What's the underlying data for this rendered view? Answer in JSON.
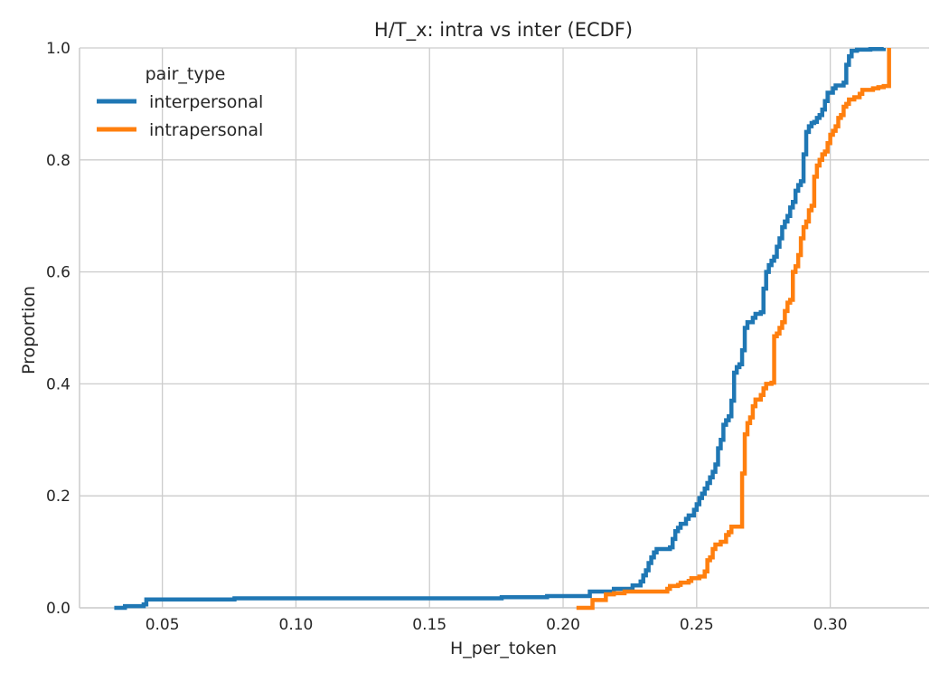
{
  "chart_data": {
    "type": "line",
    "title": "H/T_x: intra vs inter (ECDF)",
    "xlabel": "H_per_token",
    "ylabel": "Proportion",
    "xlim": [
      0.019,
      0.337
    ],
    "ylim": [
      0.0,
      1.0
    ],
    "x_ticks": [
      "0.05",
      "0.10",
      "0.15",
      "0.20",
      "0.25",
      "0.30"
    ],
    "y_ticks": [
      "0.0",
      "0.2",
      "0.4",
      "0.6",
      "0.8",
      "1.0"
    ],
    "grid": true,
    "legend": {
      "title": "pair_type",
      "placement": "top-left"
    },
    "series": [
      {
        "name": "interpersonal",
        "color": "#1f77b4",
        "step": true,
        "points": [
          [
            0.032,
            0.0
          ],
          [
            0.036,
            0.003
          ],
          [
            0.043,
            0.006
          ],
          [
            0.044,
            0.015
          ],
          [
            0.076,
            0.015
          ],
          [
            0.077,
            0.017
          ],
          [
            0.176,
            0.017
          ],
          [
            0.177,
            0.019
          ],
          [
            0.193,
            0.019
          ],
          [
            0.194,
            0.021
          ],
          [
            0.209,
            0.021
          ],
          [
            0.21,
            0.029
          ],
          [
            0.216,
            0.029
          ],
          [
            0.219,
            0.034
          ],
          [
            0.226,
            0.04
          ],
          [
            0.229,
            0.047
          ],
          [
            0.23,
            0.058
          ],
          [
            0.231,
            0.067
          ],
          [
            0.232,
            0.08
          ],
          [
            0.233,
            0.09
          ],
          [
            0.234,
            0.099
          ],
          [
            0.235,
            0.105
          ],
          [
            0.24,
            0.108
          ],
          [
            0.241,
            0.123
          ],
          [
            0.242,
            0.137
          ],
          [
            0.243,
            0.143
          ],
          [
            0.244,
            0.15
          ],
          [
            0.246,
            0.159
          ],
          [
            0.247,
            0.165
          ],
          [
            0.249,
            0.175
          ],
          [
            0.25,
            0.185
          ],
          [
            0.251,
            0.196
          ],
          [
            0.252,
            0.204
          ],
          [
            0.253,
            0.213
          ],
          [
            0.254,
            0.223
          ],
          [
            0.255,
            0.233
          ],
          [
            0.256,
            0.243
          ],
          [
            0.257,
            0.256
          ],
          [
            0.258,
            0.285
          ],
          [
            0.259,
            0.3
          ],
          [
            0.26,
            0.327
          ],
          [
            0.261,
            0.335
          ],
          [
            0.262,
            0.342
          ],
          [
            0.263,
            0.37
          ],
          [
            0.264,
            0.42
          ],
          [
            0.265,
            0.43
          ],
          [
            0.266,
            0.435
          ],
          [
            0.267,
            0.46
          ],
          [
            0.268,
            0.5
          ],
          [
            0.269,
            0.51
          ],
          [
            0.271,
            0.518
          ],
          [
            0.272,
            0.525
          ],
          [
            0.274,
            0.528
          ],
          [
            0.275,
            0.57
          ],
          [
            0.276,
            0.6
          ],
          [
            0.277,
            0.612
          ],
          [
            0.278,
            0.62
          ],
          [
            0.279,
            0.627
          ],
          [
            0.28,
            0.645
          ],
          [
            0.281,
            0.66
          ],
          [
            0.282,
            0.68
          ],
          [
            0.283,
            0.69
          ],
          [
            0.284,
            0.7
          ],
          [
            0.285,
            0.715
          ],
          [
            0.286,
            0.725
          ],
          [
            0.287,
            0.745
          ],
          [
            0.288,
            0.755
          ],
          [
            0.289,
            0.762
          ],
          [
            0.29,
            0.81
          ],
          [
            0.291,
            0.85
          ],
          [
            0.292,
            0.86
          ],
          [
            0.293,
            0.866
          ],
          [
            0.294,
            0.868
          ],
          [
            0.295,
            0.875
          ],
          [
            0.296,
            0.88
          ],
          [
            0.297,
            0.89
          ],
          [
            0.298,
            0.905
          ],
          [
            0.299,
            0.92
          ],
          [
            0.301,
            0.928
          ],
          [
            0.302,
            0.933
          ],
          [
            0.305,
            0.938
          ],
          [
            0.306,
            0.97
          ],
          [
            0.307,
            0.985
          ],
          [
            0.308,
            0.995
          ],
          [
            0.31,
            0.997
          ],
          [
            0.315,
            0.998
          ],
          [
            0.32,
            1.0
          ]
        ]
      },
      {
        "name": "intrapersonal",
        "color": "#ff7f0e",
        "step": true,
        "points": [
          [
            0.205,
            0.0
          ],
          [
            0.211,
            0.014
          ],
          [
            0.215,
            0.014
          ],
          [
            0.216,
            0.024
          ],
          [
            0.219,
            0.026
          ],
          [
            0.223,
            0.029
          ],
          [
            0.238,
            0.029
          ],
          [
            0.239,
            0.034
          ],
          [
            0.24,
            0.039
          ],
          [
            0.243,
            0.041
          ],
          [
            0.244,
            0.045
          ],
          [
            0.247,
            0.048
          ],
          [
            0.248,
            0.053
          ],
          [
            0.251,
            0.056
          ],
          [
            0.253,
            0.065
          ],
          [
            0.254,
            0.085
          ],
          [
            0.255,
            0.09
          ],
          [
            0.256,
            0.105
          ],
          [
            0.257,
            0.113
          ],
          [
            0.259,
            0.118
          ],
          [
            0.261,
            0.13
          ],
          [
            0.262,
            0.135
          ],
          [
            0.263,
            0.145
          ],
          [
            0.266,
            0.145
          ],
          [
            0.267,
            0.24
          ],
          [
            0.268,
            0.31
          ],
          [
            0.269,
            0.33
          ],
          [
            0.27,
            0.34
          ],
          [
            0.271,
            0.36
          ],
          [
            0.272,
            0.372
          ],
          [
            0.274,
            0.38
          ],
          [
            0.275,
            0.392
          ],
          [
            0.276,
            0.4
          ],
          [
            0.278,
            0.402
          ],
          [
            0.279,
            0.485
          ],
          [
            0.28,
            0.49
          ],
          [
            0.281,
            0.5
          ],
          [
            0.282,
            0.51
          ],
          [
            0.283,
            0.53
          ],
          [
            0.284,
            0.545
          ],
          [
            0.285,
            0.55
          ],
          [
            0.286,
            0.6
          ],
          [
            0.287,
            0.61
          ],
          [
            0.288,
            0.63
          ],
          [
            0.289,
            0.66
          ],
          [
            0.29,
            0.68
          ],
          [
            0.291,
            0.69
          ],
          [
            0.292,
            0.71
          ],
          [
            0.293,
            0.718
          ],
          [
            0.294,
            0.77
          ],
          [
            0.295,
            0.79
          ],
          [
            0.296,
            0.8
          ],
          [
            0.297,
            0.81
          ],
          [
            0.298,
            0.815
          ],
          [
            0.299,
            0.83
          ],
          [
            0.3,
            0.845
          ],
          [
            0.301,
            0.852
          ],
          [
            0.302,
            0.86
          ],
          [
            0.303,
            0.875
          ],
          [
            0.304,
            0.88
          ],
          [
            0.305,
            0.895
          ],
          [
            0.306,
            0.9
          ],
          [
            0.307,
            0.908
          ],
          [
            0.309,
            0.912
          ],
          [
            0.311,
            0.918
          ],
          [
            0.312,
            0.925
          ],
          [
            0.314,
            0.925
          ],
          [
            0.316,
            0.928
          ],
          [
            0.318,
            0.93
          ],
          [
            0.32,
            0.932
          ],
          [
            0.322,
            1.0
          ]
        ]
      }
    ]
  }
}
